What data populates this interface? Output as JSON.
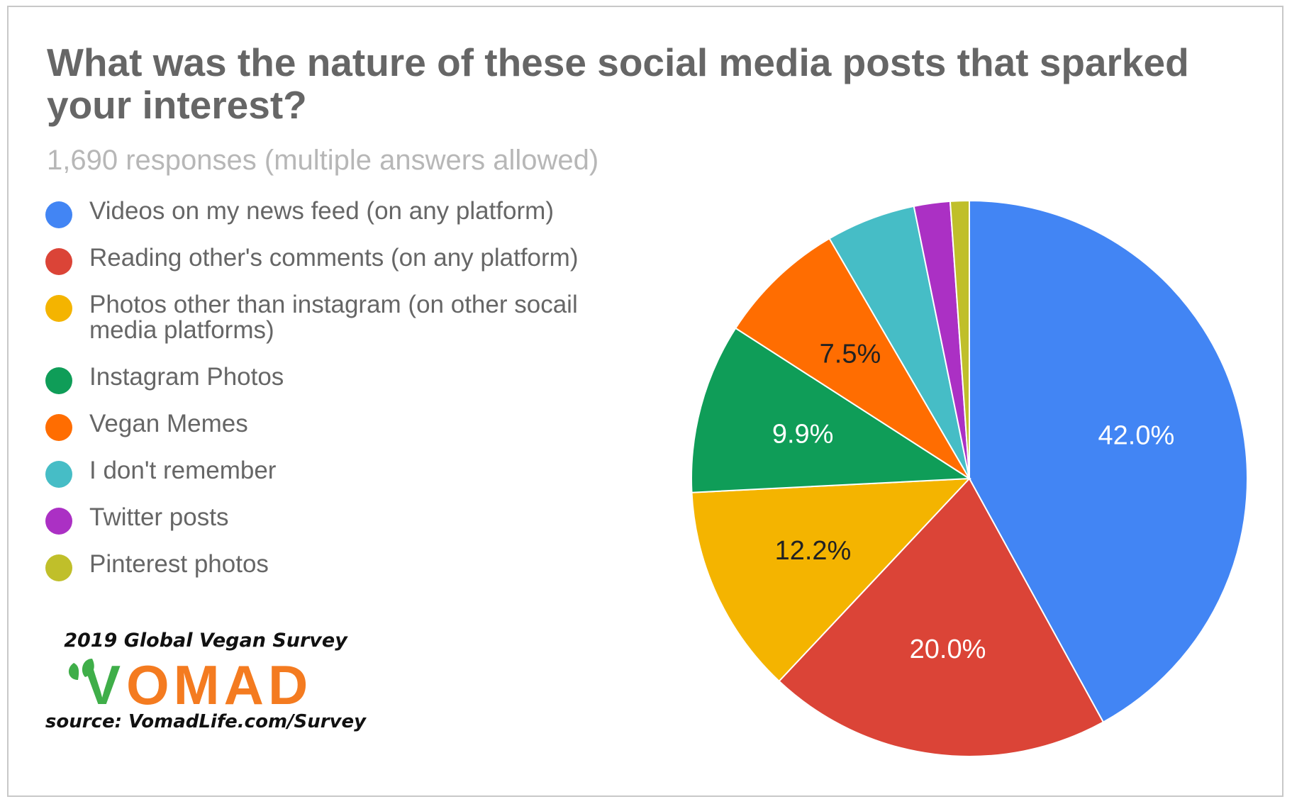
{
  "chart_data": {
    "type": "pie",
    "title": "What was the nature of these social media posts that sparked your interest?",
    "subtitle": "1,690 responses (multiple answers allowed)",
    "legend_position": "left",
    "categories": [
      "Videos on my news feed (on any platform)",
      "Reading other's comments (on any platform)",
      "Photos other than instagram (on other socail media platforms)",
      "Instagram Photos",
      "Vegan Memes",
      "I don't remember",
      "Twitter posts",
      "Pinterest photos"
    ],
    "values": [
      42.0,
      20.0,
      12.2,
      9.9,
      7.5,
      5.2,
      2.1,
      1.1
    ],
    "data_labels": [
      "42.0%",
      "20.0%",
      "12.2%",
      "9.9%",
      "7.5%",
      "",
      "",
      ""
    ],
    "colors": [
      "#4285f4",
      "#db4437",
      "#f4b400",
      "#0f9d58",
      "#ff6d01",
      "#46bdc6",
      "#ab30c4",
      "#c0bf2a"
    ],
    "label_colors": [
      "#ffffff",
      "#ffffff",
      "#222222",
      "#ffffff",
      "#222222",
      "#ffffff",
      "#ffffff",
      "#ffffff"
    ]
  },
  "branding": {
    "survey_title": "2019 Global Vegan Survey",
    "logo_text": "VOMAD",
    "logo_colors": {
      "V": "#3fae49",
      "rest": "#f47b20",
      "leaf": "#3fae49"
    },
    "source": "source: VomadLife.com/Survey"
  }
}
